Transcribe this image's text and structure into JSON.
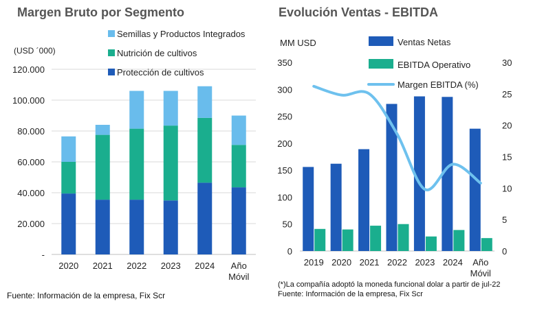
{
  "colors": {
    "proteccion": "#1E5BB8",
    "nutricion": "#1AAE8E",
    "semillas": "#69BCEC",
    "ventas": "#1E5BB8",
    "ebitda": "#1AAE8E",
    "margen": "#6EC1EE",
    "grid": "#D9D9D9",
    "axis_text": "#222222",
    "title_text": "#555555"
  },
  "footer": {
    "left_source": "Fuente: Información de la empresa, Fix Scr",
    "right_note": "(*)La compañía adoptó la moneda funcional dolar a partir de jul-22",
    "right_source": "Fuente: Información de la empresa, Fix Scr"
  },
  "chart_data": [
    {
      "type": "bar",
      "stacked": true,
      "title": "Margen Bruto por Segmento",
      "ylabel": "(USD ´000)",
      "categories": [
        "2020",
        "2021",
        "2022",
        "2023",
        "2024",
        "Año\nMóvil"
      ],
      "series": [
        {
          "name": "Protección de cultivos",
          "values": [
            39500,
            35500,
            35500,
            35000,
            46500,
            43500
          ]
        },
        {
          "name": "Nutrición de cultivos",
          "values": [
            20500,
            42000,
            46000,
            48500,
            42000,
            27500
          ]
        },
        {
          "name": "Semillas y Productos Integrados",
          "values": [
            16500,
            6500,
            24500,
            22500,
            20500,
            19000
          ]
        }
      ],
      "ylim": [
        0,
        120000
      ],
      "yticks": [
        0,
        20000,
        40000,
        60000,
        80000,
        100000,
        120000
      ],
      "ytick_labels": [
        "-",
        "20.000",
        "40.000",
        "60.000",
        "80.000",
        "100.000",
        "120.000"
      ],
      "legend_position": "top-right",
      "legend_order": [
        "Semillas y Productos Integrados",
        "Nutrición de cultivos",
        "Protección de cultivos"
      ],
      "grid": true
    },
    {
      "type": "bar",
      "title": "Evolución Ventas - EBITDA",
      "ylabel": "MM USD",
      "categories": [
        "2019",
        "2020",
        "2021",
        "2022",
        "2023",
        "2024",
        "Año\nMóvil"
      ],
      "series": [
        {
          "name": "Ventas Netas",
          "type": "bar",
          "axis": "left",
          "values": [
            156,
            162,
            189,
            273,
            287,
            286,
            227
          ]
        },
        {
          "name": "EBITDA Operativo",
          "type": "bar",
          "axis": "left",
          "values": [
            41,
            40,
            47,
            50,
            27,
            39,
            24
          ]
        },
        {
          "name": "Margen EBITDA (%)",
          "type": "line",
          "axis": "right",
          "values": [
            26.2,
            24.8,
            25.0,
            18.6,
            9.8,
            13.8,
            10.8
          ]
        }
      ],
      "ylim": [
        0,
        350
      ],
      "yticks": [
        0,
        50,
        100,
        150,
        200,
        250,
        300,
        350
      ],
      "y2lim": [
        0,
        30
      ],
      "y2ticks": [
        0,
        5,
        10,
        15,
        20,
        25,
        30
      ],
      "legend_position": "top-right",
      "grid": false
    }
  ]
}
